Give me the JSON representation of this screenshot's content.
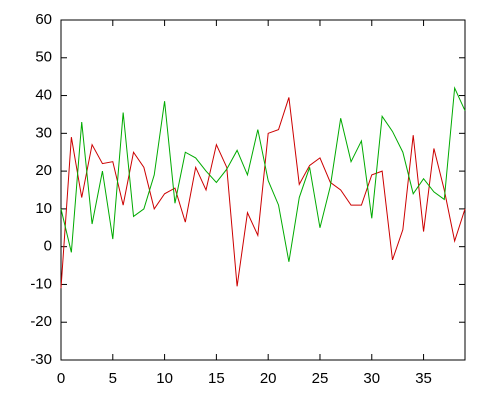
{
  "chart_data": {
    "type": "line",
    "x": [
      0,
      1,
      2,
      3,
      4,
      5,
      6,
      7,
      8,
      9,
      10,
      11,
      12,
      13,
      14,
      15,
      16,
      17,
      18,
      19,
      20,
      21,
      22,
      23,
      24,
      25,
      26,
      27,
      28,
      29,
      30,
      31,
      32,
      33,
      34,
      35,
      36,
      37,
      38,
      39
    ],
    "series": [
      {
        "color": "#cc0000",
        "values": [
          -11,
          29,
          13,
          27,
          22,
          22.5,
          11,
          25,
          21,
          10,
          14,
          15.5,
          6.5,
          21,
          15,
          27,
          21,
          -10.5,
          9,
          3,
          30,
          31,
          39.5,
          16.5,
          21.5,
          23.5,
          17,
          15,
          11,
          11,
          19,
          20,
          -3.5,
          4.5,
          29.5,
          4,
          26,
          15,
          1.5,
          10
        ]
      },
      {
        "color": "#00aa00",
        "values": [
          10,
          -1.5,
          33,
          6,
          20,
          2,
          35.5,
          8,
          10,
          19,
          38.5,
          11.5,
          25,
          23.5,
          20,
          17,
          20.5,
          25.5,
          19,
          31,
          17.5,
          11,
          -4,
          13,
          21,
          5,
          16,
          34,
          22.5,
          28,
          7.5,
          34.5,
          30.5,
          25,
          14,
          18,
          14.5,
          12.5,
          42,
          36
        ]
      }
    ],
    "xlim": [
      0,
      39
    ],
    "xticks": [
      0,
      5,
      10,
      15,
      20,
      25,
      30,
      35
    ],
    "ylim": [
      -30,
      60
    ],
    "yticks": [
      -30,
      -20,
      -10,
      0,
      10,
      20,
      30,
      40,
      50,
      60
    ]
  }
}
